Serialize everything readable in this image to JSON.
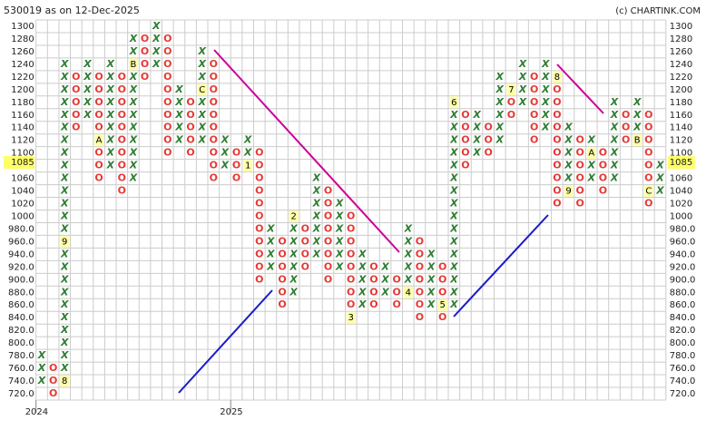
{
  "chart_data": {
    "type": "point-and-figure",
    "title": "530019 as on 12-Dec-2025",
    "credit": "(c) CHARTINK.COM",
    "ylim": [
      720,
      1300
    ],
    "yticks": [
      {
        "value": 720,
        "label": "720.0"
      },
      {
        "value": 740,
        "label": "740.0"
      },
      {
        "value": 760,
        "label": "760.0"
      },
      {
        "value": 780,
        "label": "780.0"
      },
      {
        "value": 800,
        "label": "800.0"
      },
      {
        "value": 820,
        "label": "820.0"
      },
      {
        "value": 840,
        "label": "840.0"
      },
      {
        "value": 860,
        "label": "860.0"
      },
      {
        "value": 880,
        "label": "880.0"
      },
      {
        "value": 900,
        "label": "900.0"
      },
      {
        "value": 920,
        "label": "920.0"
      },
      {
        "value": 940,
        "label": "940.0"
      },
      {
        "value": 960,
        "label": "960.0"
      },
      {
        "value": 980,
        "label": "980.0"
      },
      1000,
      1020,
      1040,
      1060,
      1080,
      1100,
      1120,
      1140,
      1160,
      1180,
      1200,
      1220,
      1240,
      1260,
      1280,
      1300
    ],
    "last_price": 1085,
    "x_colors": {
      "X": "#2e7d32",
      "O": "#e53935"
    },
    "year_marks": [
      {
        "label": "2024",
        "column": 0
      },
      {
        "label": "2025",
        "column": 17
      }
    ],
    "columns": [
      {
        "symbol": "X",
        "low": 740,
        "high": 780
      },
      {
        "symbol": "O",
        "low": 720,
        "high": 760
      },
      {
        "symbol": "X",
        "low": 740,
        "high": 1240,
        "markers": [
          {
            "value": 740,
            "label": "8"
          },
          {
            "value": 960,
            "label": "9"
          }
        ]
      },
      {
        "symbol": "O",
        "low": 1140,
        "high": 1220
      },
      {
        "symbol": "X",
        "low": 1160,
        "high": 1240
      },
      {
        "symbol": "O",
        "low": 1060,
        "high": 1220,
        "markers": [
          {
            "value": 1120,
            "label": "A"
          }
        ]
      },
      {
        "symbol": "X",
        "low": 1080,
        "high": 1240
      },
      {
        "symbol": "O",
        "low": 1040,
        "high": 1220
      },
      {
        "symbol": "X",
        "low": 1060,
        "high": 1280,
        "markers": [
          {
            "value": 1240,
            "label": "B"
          }
        ]
      },
      {
        "symbol": "O",
        "low": 1220,
        "high": 1280
      },
      {
        "symbol": "X",
        "low": 1240,
        "high": 1300
      },
      {
        "symbol": "O",
        "low": 1100,
        "high": 1280
      },
      {
        "symbol": "X",
        "low": 1120,
        "high": 1200
      },
      {
        "symbol": "O",
        "low": 1100,
        "high": 1180
      },
      {
        "symbol": "X",
        "low": 1120,
        "high": 1260,
        "markers": [
          {
            "value": 1200,
            "label": "C"
          }
        ]
      },
      {
        "symbol": "O",
        "low": 1060,
        "high": 1240
      },
      {
        "symbol": "X",
        "low": 1080,
        "high": 1120
      },
      {
        "symbol": "O",
        "low": 1060,
        "high": 1100
      },
      {
        "symbol": "X",
        "low": 1080,
        "high": 1120,
        "markers": [
          {
            "value": 1080,
            "label": "1"
          }
        ]
      },
      {
        "symbol": "O",
        "low": 900,
        "high": 1100
      },
      {
        "symbol": "X",
        "low": 920,
        "high": 980
      },
      {
        "symbol": "O",
        "low": 860,
        "high": 960
      },
      {
        "symbol": "X",
        "low": 880,
        "high": 1000,
        "markers": [
          {
            "value": 1000,
            "label": "2"
          }
        ]
      },
      {
        "symbol": "O",
        "low": 920,
        "high": 980
      },
      {
        "symbol": "X",
        "low": 940,
        "high": 1060
      },
      {
        "symbol": "O",
        "low": 900,
        "high": 1040
      },
      {
        "symbol": "X",
        "low": 920,
        "high": 1020
      },
      {
        "symbol": "O",
        "low": 840,
        "high": 1000,
        "markers": [
          {
            "value": 840,
            "label": "3"
          }
        ]
      },
      {
        "symbol": "X",
        "low": 860,
        "high": 940
      },
      {
        "symbol": "O",
        "low": 860,
        "high": 920
      },
      {
        "symbol": "X",
        "low": 880,
        "high": 920
      },
      {
        "symbol": "O",
        "low": 860,
        "high": 900
      },
      {
        "symbol": "X",
        "low": 880,
        "high": 980,
        "markers": [
          {
            "value": 880,
            "label": "4"
          }
        ]
      },
      {
        "symbol": "O",
        "low": 840,
        "high": 960
      },
      {
        "symbol": "X",
        "low": 860,
        "high": 940
      },
      {
        "symbol": "O",
        "low": 840,
        "high": 920,
        "markers": [
          {
            "value": 860,
            "label": "5"
          }
        ]
      },
      {
        "symbol": "X",
        "low": 860,
        "high": 1180,
        "markers": [
          {
            "value": 1180,
            "label": "6"
          }
        ]
      },
      {
        "symbol": "O",
        "low": 1080,
        "high": 1160
      },
      {
        "symbol": "X",
        "low": 1100,
        "high": 1160
      },
      {
        "symbol": "O",
        "low": 1100,
        "high": 1140
      },
      {
        "symbol": "X",
        "low": 1120,
        "high": 1220
      },
      {
        "symbol": "O",
        "low": 1160,
        "high": 1200,
        "markers": [
          {
            "value": 1200,
            "label": "7"
          }
        ]
      },
      {
        "symbol": "X",
        "low": 1180,
        "high": 1240
      },
      {
        "symbol": "O",
        "low": 1120,
        "high": 1220
      },
      {
        "symbol": "X",
        "low": 1140,
        "high": 1240
      },
      {
        "symbol": "O",
        "low": 1020,
        "high": 1220,
        "markers": [
          {
            "value": 1220,
            "label": "8"
          }
        ]
      },
      {
        "symbol": "X",
        "low": 1040,
        "high": 1140,
        "markers": [
          {
            "value": 1040,
            "label": "9"
          }
        ]
      },
      {
        "symbol": "O",
        "low": 1020,
        "high": 1120
      },
      {
        "symbol": "X",
        "low": 1060,
        "high": 1120,
        "markers": [
          {
            "value": 1100,
            "label": "A"
          }
        ]
      },
      {
        "symbol": "O",
        "low": 1040,
        "high": 1100
      },
      {
        "symbol": "X",
        "low": 1060,
        "high": 1180
      },
      {
        "symbol": "O",
        "low": 1120,
        "high": 1160
      },
      {
        "symbol": "X",
        "low": 1120,
        "high": 1180,
        "markers": [
          {
            "value": 1120,
            "label": "B"
          }
        ]
      },
      {
        "symbol": "O",
        "low": 1020,
        "high": 1160,
        "markers": [
          {
            "value": 1040,
            "label": "C"
          }
        ]
      },
      {
        "symbol": "X",
        "low": 1040,
        "high": 1080
      }
    ]
  }
}
